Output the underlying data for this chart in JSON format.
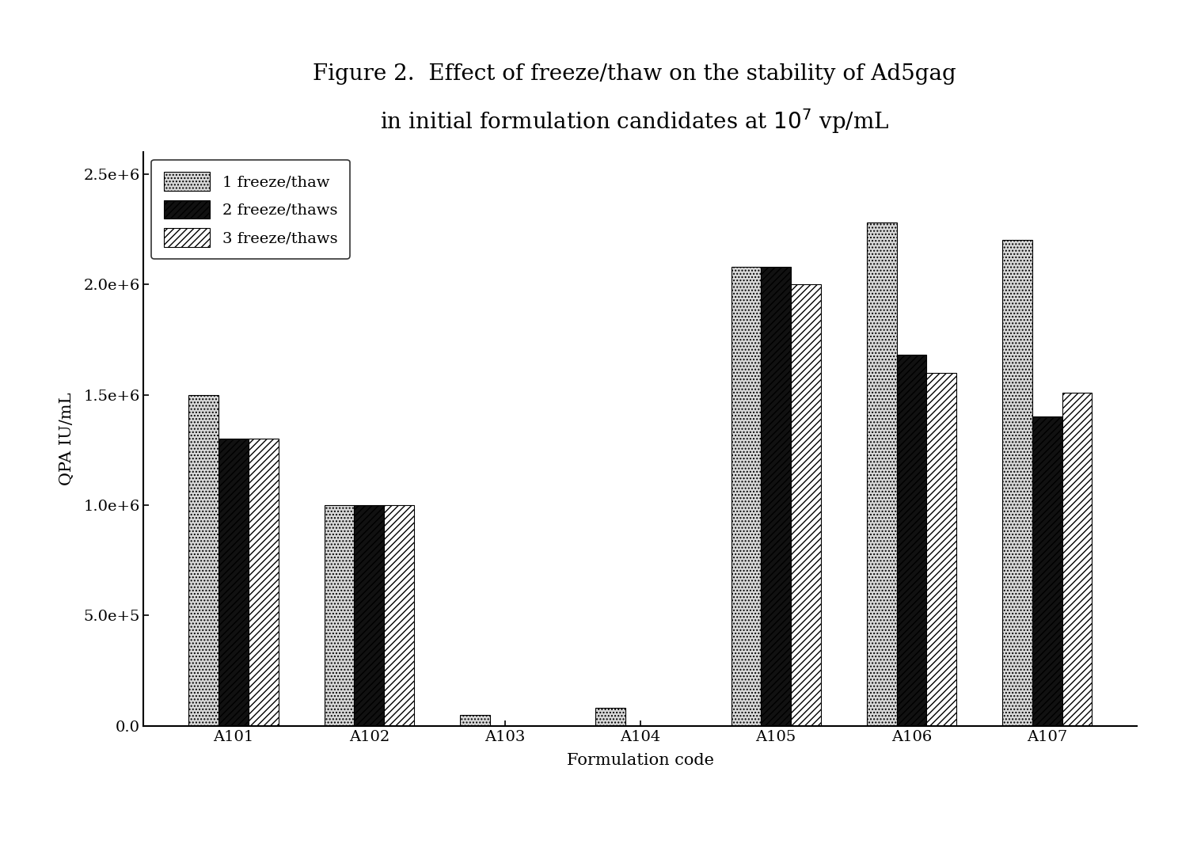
{
  "categories": [
    "A101",
    "A102",
    "A103",
    "A104",
    "A105",
    "A106",
    "A107"
  ],
  "series": [
    {
      "label": "1 freeze/thaw",
      "values": [
        1500000,
        1000000,
        50000,
        80000,
        2080000,
        2280000,
        2200000
      ],
      "hatch": "....",
      "facecolor": "#d8d8d8",
      "edgecolor": "#000000"
    },
    {
      "label": "2 freeze/thaws",
      "values": [
        1300000,
        1000000,
        0,
        0,
        2080000,
        1680000,
        1400000
      ],
      "hatch": "////",
      "facecolor": "#111111",
      "edgecolor": "#000000"
    },
    {
      "label": "3 freeze/thaws",
      "values": [
        1300000,
        1000000,
        0,
        0,
        2000000,
        1600000,
        1510000
      ],
      "hatch": "////",
      "facecolor": "#ffffff",
      "edgecolor": "#000000"
    }
  ],
  "ylabel": "QPA IU/mL",
  "xlabel": "Formulation code",
  "ylim": [
    0,
    2600000
  ],
  "yticks": [
    0,
    500000,
    1000000,
    1500000,
    2000000,
    2500000
  ],
  "ytick_labels": [
    "0.0",
    "5.0e+5",
    "1.0e+6",
    "1.5e+6",
    "2.0e+6",
    "2.5e+6"
  ],
  "background_color": "#ffffff",
  "bar_width": 0.22,
  "legend_loc": "upper left",
  "title": "Figure 2.  Effect of freeze/thaw on the stability of Ad5gag\nin initial formulation candidates at $10^7$ vp/mL",
  "title_fontsize": 20,
  "axis_fontsize": 15,
  "tick_fontsize": 14,
  "legend_fontsize": 14
}
